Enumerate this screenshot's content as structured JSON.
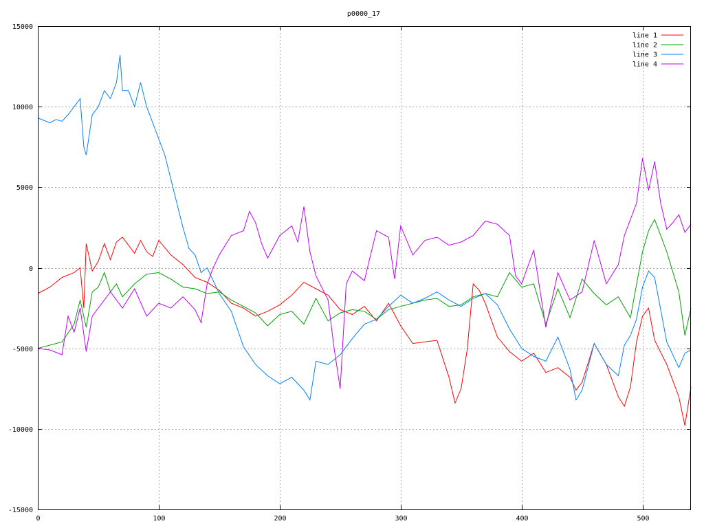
{
  "chart_data": {
    "type": "line",
    "title": "p0000_17",
    "xlabel": "",
    "ylabel": "",
    "xlim": [
      0,
      540
    ],
    "ylim": [
      -15000,
      15000
    ],
    "xticks": [
      0,
      100,
      200,
      300,
      400,
      500
    ],
    "yticks": [
      -15000,
      -10000,
      -5000,
      0,
      5000,
      10000,
      15000
    ],
    "grid": true,
    "legend_position": "top-right",
    "series": [
      {
        "name": "line 1",
        "color": "#ff0000",
        "x": [
          0,
          10,
          20,
          30,
          35,
          38,
          40,
          45,
          50,
          55,
          60,
          65,
          70,
          75,
          80,
          85,
          90,
          95,
          100,
          110,
          120,
          130,
          140,
          150,
          160,
          170,
          180,
          190,
          200,
          210,
          220,
          230,
          240,
          250,
          260,
          270,
          280,
          290,
          300,
          310,
          320,
          330,
          340,
          345,
          350,
          355,
          360,
          365,
          370,
          380,
          390,
          400,
          410,
          420,
          430,
          440,
          445,
          450,
          460,
          470,
          480,
          485,
          490,
          495,
          500,
          505,
          510,
          520,
          530,
          535,
          540
        ],
        "y": [
          -1600,
          -1200,
          -600,
          -300,
          0,
          -2500,
          1500,
          -200,
          400,
          1500,
          500,
          1600,
          1900,
          1400,
          900,
          1700,
          1000,
          700,
          1700,
          800,
          200,
          -600,
          -900,
          -1400,
          -2200,
          -2500,
          -3000,
          -2700,
          -2300,
          -1700,
          -900,
          -1300,
          -1700,
          -2600,
          -2900,
          -2400,
          -3300,
          -2200,
          -3600,
          -4700,
          -4600,
          -4500,
          -6800,
          -8400,
          -7500,
          -5100,
          -1000,
          -1400,
          -2200,
          -4300,
          -5200,
          -5800,
          -5300,
          -6500,
          -6200,
          -6800,
          -7600,
          -7100,
          -4700,
          -6000,
          -8000,
          -8600,
          -7400,
          -4600,
          -3000,
          -2500,
          -4500,
          -6000,
          -8000,
          -9800,
          -7400
        ]
      },
      {
        "name": "line 2",
        "color": "#00a000",
        "x": [
          0,
          10,
          20,
          30,
          35,
          40,
          45,
          50,
          55,
          60,
          65,
          70,
          80,
          90,
          100,
          110,
          120,
          130,
          140,
          150,
          160,
          170,
          180,
          190,
          200,
          210,
          220,
          230,
          240,
          250,
          260,
          270,
          280,
          290,
          300,
          310,
          320,
          330,
          340,
          350,
          360,
          370,
          380,
          390,
          400,
          410,
          420,
          430,
          440,
          450,
          460,
          470,
          480,
          490,
          500,
          505,
          510,
          520,
          530,
          535,
          540
        ],
        "y": [
          -5000,
          -4800,
          -4600,
          -3500,
          -2000,
          -3700,
          -1500,
          -1200,
          -300,
          -1500,
          -1000,
          -1800,
          -1000,
          -400,
          -300,
          -700,
          -1200,
          -1300,
          -1600,
          -1500,
          -2000,
          -2400,
          -2800,
          -3600,
          -2900,
          -2700,
          -3500,
          -1900,
          -3300,
          -2800,
          -2600,
          -2700,
          -3200,
          -2600,
          -2400,
          -2200,
          -2000,
          -1900,
          -2400,
          -2300,
          -1800,
          -1600,
          -1800,
          -300,
          -1200,
          -1000,
          -3500,
          -1300,
          -3100,
          -700,
          -1600,
          -2300,
          -1800,
          -3100,
          1000,
          2300,
          3000,
          1000,
          -1500,
          -4200,
          -2500
        ]
      },
      {
        "name": "line 3",
        "color": "#0080ff",
        "x": [
          0,
          10,
          15,
          20,
          25,
          30,
          35,
          38,
          40,
          45,
          50,
          55,
          60,
          65,
          68,
          70,
          75,
          80,
          85,
          90,
          95,
          100,
          105,
          110,
          115,
          120,
          125,
          130,
          135,
          140,
          150,
          160,
          170,
          180,
          190,
          200,
          210,
          220,
          225,
          230,
          240,
          250,
          260,
          270,
          280,
          290,
          300,
          310,
          320,
          330,
          340,
          350,
          360,
          370,
          380,
          390,
          400,
          410,
          420,
          430,
          440,
          445,
          450,
          460,
          470,
          480,
          485,
          490,
          495,
          500,
          505,
          510,
          520,
          530,
          535,
          540
        ],
        "y": [
          9300,
          9000,
          9200,
          9100,
          9500,
          10000,
          10500,
          7500,
          7000,
          9500,
          10000,
          11000,
          10500,
          11500,
          13200,
          11000,
          11000,
          10000,
          11500,
          10000,
          9000,
          8000,
          7000,
          5500,
          4000,
          2500,
          1200,
          800,
          -300,
          0,
          -1600,
          -2700,
          -4900,
          -6000,
          -6700,
          -7200,
          -6800,
          -7600,
          -8200,
          -5800,
          -6000,
          -5400,
          -4400,
          -3500,
          -3200,
          -2400,
          -1700,
          -2200,
          -1900,
          -1500,
          -2000,
          -2400,
          -1900,
          -1600,
          -2300,
          -3800,
          -5000,
          -5500,
          -5800,
          -4300,
          -6300,
          -8200,
          -7600,
          -4700,
          -6000,
          -6700,
          -4800,
          -4200,
          -3200,
          -1200,
          -200,
          -600,
          -4600,
          -6200,
          -5300,
          -5100
        ]
      },
      {
        "name": "line 4",
        "color": "#c000ff",
        "x": [
          0,
          10,
          20,
          25,
          30,
          35,
          40,
          45,
          50,
          60,
          70,
          80,
          90,
          100,
          110,
          120,
          130,
          135,
          140,
          145,
          150,
          160,
          170,
          175,
          180,
          185,
          190,
          200,
          210,
          215,
          220,
          225,
          230,
          240,
          245,
          250,
          255,
          260,
          270,
          280,
          290,
          295,
          300,
          310,
          320,
          330,
          340,
          350,
          360,
          370,
          380,
          390,
          395,
          400,
          410,
          420,
          430,
          440,
          450,
          460,
          470,
          480,
          485,
          490,
          495,
          500,
          505,
          510,
          515,
          520,
          525,
          530,
          535,
          540
        ],
        "y": [
          -5000,
          -5100,
          -5400,
          -3000,
          -4000,
          -2500,
          -5200,
          -3000,
          -2500,
          -1500,
          -2500,
          -1300,
          -3000,
          -2200,
          -2500,
          -1800,
          -2600,
          -3400,
          -1000,
          0,
          800,
          2000,
          2300,
          3500,
          2800,
          1500,
          600,
          2000,
          2600,
          1600,
          3800,
          1000,
          -500,
          -2000,
          -5000,
          -7500,
          -1000,
          -200,
          -800,
          2300,
          1900,
          -700,
          2600,
          800,
          1700,
          1900,
          1400,
          1600,
          2000,
          2900,
          2700,
          2000,
          -500,
          -1000,
          1100,
          -3700,
          -300,
          -2000,
          -1500,
          1700,
          -1000,
          200,
          2000,
          3000,
          4000,
          6800,
          4800,
          6600,
          4000,
          2400,
          2800,
          3300,
          2200,
          2700
        ]
      }
    ]
  }
}
